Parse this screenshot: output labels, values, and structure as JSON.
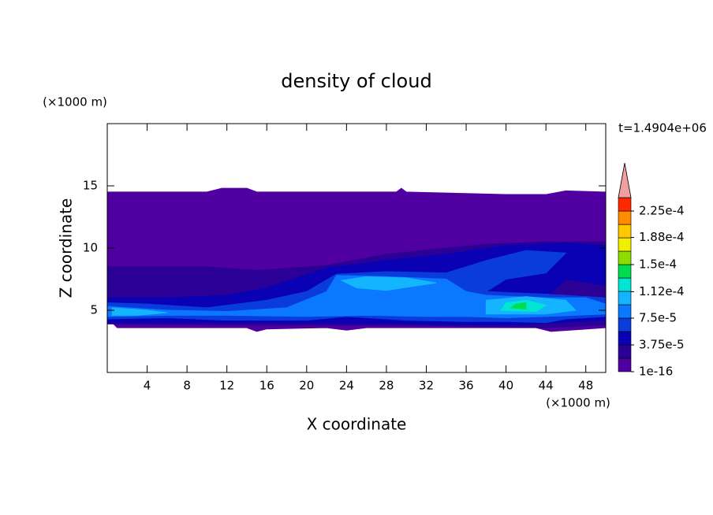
{
  "chart_data": {
    "type": "contour",
    "title": "density of cloud",
    "x_label": "X coordinate",
    "y_label": "Z coordinate",
    "x_unit": "(×1000 m)",
    "y_unit": "(×1000 m)",
    "time_label": "t=1.4904e+06",
    "xlim": [
      0,
      50
    ],
    "ylim": [
      0,
      20
    ],
    "xticks": [
      4,
      8,
      12,
      16,
      20,
      24,
      28,
      32,
      36,
      40,
      44,
      48
    ],
    "yticks": [
      5,
      10,
      15
    ],
    "colorbar": {
      "levels": [
        1e-16,
        1.875e-05,
        3.75e-05,
        5.625e-05,
        7.5e-05,
        9.375e-05,
        0.0001125,
        0.00013125,
        0.00015,
        0.00016875,
        0.0001875,
        0.00020625,
        0.000225,
        0.00024375
      ],
      "colors": [
        "#5000a0",
        "#2a0096",
        "#0a00b4",
        "#0a3cdc",
        "#0a78ff",
        "#14b4ff",
        "#00e6d2",
        "#00dc50",
        "#8cdc00",
        "#f0f000",
        "#ffc800",
        "#ff8c00",
        "#ff2800"
      ],
      "extend_color": "#f0a0a0",
      "ticks": [
        1e-16,
        {
          "value": 3.75e-05,
          "label": "3.75e-5"
        },
        {
          "value": 7.5e-05,
          "label": "7.5e-5"
        },
        {
          "value": 0.000112,
          "label": "1.12e-4"
        },
        {
          "value": 0.00015,
          "label": "1.5e-4"
        },
        {
          "value": 0.000188,
          "label": "1.88e-4"
        },
        {
          "value": 0.000225,
          "label": "2.25e-4"
        }
      ]
    },
    "regions": [
      {
        "value": 1e-05,
        "points": [
          [
            0,
            14.5
          ],
          [
            10,
            14.5
          ],
          [
            11.5,
            14.8
          ],
          [
            14,
            14.8
          ],
          [
            15,
            14.5
          ],
          [
            29,
            14.5
          ],
          [
            29.5,
            14.8
          ],
          [
            30,
            14.5
          ],
          [
            40,
            14.3
          ],
          [
            44,
            14.3
          ],
          [
            46,
            14.6
          ],
          [
            50,
            14.5
          ],
          [
            50,
            3.6
          ],
          [
            44.5,
            3.3
          ],
          [
            43,
            3.6
          ],
          [
            26,
            3.6
          ],
          [
            24,
            3.4
          ],
          [
            22,
            3.6
          ],
          [
            16,
            3.5
          ],
          [
            15,
            3.3
          ],
          [
            14,
            3.6
          ],
          [
            1,
            3.6
          ],
          [
            0.5,
            4
          ],
          [
            0,
            4
          ]
        ]
      },
      {
        "value": 2.5e-05,
        "points": [
          [
            0,
            3.9
          ],
          [
            0,
            8.5
          ],
          [
            10,
            8.5
          ],
          [
            15,
            8.2
          ],
          [
            22,
            8.6
          ],
          [
            28,
            9.5
          ],
          [
            34,
            10
          ],
          [
            38,
            10.3
          ],
          [
            44,
            10.5
          ],
          [
            50,
            10.5
          ],
          [
            50,
            3.8
          ],
          [
            44,
            3.6
          ],
          [
            30,
            3.8
          ],
          [
            16,
            3.8
          ]
        ]
      },
      {
        "value": 4.5e-05,
        "points": [
          [
            0,
            4
          ],
          [
            0,
            6
          ],
          [
            6,
            6
          ],
          [
            12,
            6.2
          ],
          [
            16,
            6.8
          ],
          [
            22,
            8.4
          ],
          [
            28,
            9
          ],
          [
            34,
            9.5
          ],
          [
            40,
            10.2
          ],
          [
            46,
            10.4
          ],
          [
            50,
            10.2
          ],
          [
            50,
            7
          ],
          [
            46,
            7.5
          ],
          [
            44,
            6
          ],
          [
            50,
            6
          ],
          [
            50,
            4.2
          ],
          [
            40,
            3.8
          ],
          [
            30,
            3.9
          ],
          [
            20,
            4
          ],
          [
            10,
            4
          ]
        ]
      },
      {
        "value": 6e-05,
        "points": [
          [
            0,
            4.3
          ],
          [
            0,
            5.6
          ],
          [
            4,
            5.5
          ],
          [
            10,
            5.2
          ],
          [
            16,
            5.8
          ],
          [
            20,
            6.5
          ],
          [
            23,
            7.9
          ],
          [
            28,
            8.1
          ],
          [
            34,
            8
          ],
          [
            38,
            9
          ],
          [
            42,
            9.8
          ],
          [
            46,
            9.6
          ],
          [
            44,
            8
          ],
          [
            40,
            7.5
          ],
          [
            38,
            6.5
          ],
          [
            44,
            6.3
          ],
          [
            50,
            6
          ],
          [
            50,
            4.5
          ],
          [
            46,
            4.3
          ],
          [
            44,
            4
          ],
          [
            40,
            4.1
          ],
          [
            36,
            4.1
          ],
          [
            30,
            4.2
          ],
          [
            24,
            4.5
          ],
          [
            20,
            4.2
          ],
          [
            12,
            4.2
          ],
          [
            6,
            4.4
          ]
        ]
      },
      {
        "value": 8e-05,
        "points": [
          [
            0,
            4.5
          ],
          [
            0,
            5.3
          ],
          [
            6,
            5
          ],
          [
            12,
            4.9
          ],
          [
            18,
            5.2
          ],
          [
            22,
            6.5
          ],
          [
            23,
            7.8
          ],
          [
            28,
            7.7
          ],
          [
            34,
            7.5
          ],
          [
            36,
            6.5
          ],
          [
            38,
            6.2
          ],
          [
            44,
            6
          ],
          [
            48,
            6
          ],
          [
            50,
            5.5
          ],
          [
            50,
            4.7
          ],
          [
            44,
            4.5
          ],
          [
            40,
            4.4
          ],
          [
            36,
            4.5
          ],
          [
            32,
            4.5
          ],
          [
            26,
            4.6
          ],
          [
            20,
            4.5
          ],
          [
            12,
            4.6
          ],
          [
            6,
            4.6
          ]
        ]
      },
      {
        "value": 0.0001,
        "points": [
          [
            0.5,
            4.6
          ],
          [
            0.5,
            5.2
          ],
          [
            4,
            5
          ],
          [
            6,
            4.8
          ],
          [
            3,
            4.6
          ]
        ]
      },
      {
        "value": 0.0001,
        "points": [
          [
            38,
            4.7
          ],
          [
            38,
            5.8
          ],
          [
            42,
            6.1
          ],
          [
            46,
            5.8
          ],
          [
            47,
            5
          ],
          [
            44,
            4.7
          ]
        ]
      },
      {
        "value": 0.0001,
        "points": [
          [
            23.5,
            7.4
          ],
          [
            26,
            7.7
          ],
          [
            30,
            7.6
          ],
          [
            33,
            7.2
          ],
          [
            28,
            6.6
          ],
          [
            25,
            6.8
          ]
        ]
      },
      {
        "value": 0.00012,
        "points": [
          [
            39.5,
            5
          ],
          [
            40,
            5.6
          ],
          [
            42,
            5.8
          ],
          [
            44,
            5.4
          ],
          [
            43,
            4.9
          ]
        ]
      },
      {
        "value": 0.00014,
        "points": [
          [
            40.5,
            5.2
          ],
          [
            41,
            5.5
          ],
          [
            42,
            5.6
          ],
          [
            42,
            5.1
          ]
        ]
      }
    ]
  }
}
